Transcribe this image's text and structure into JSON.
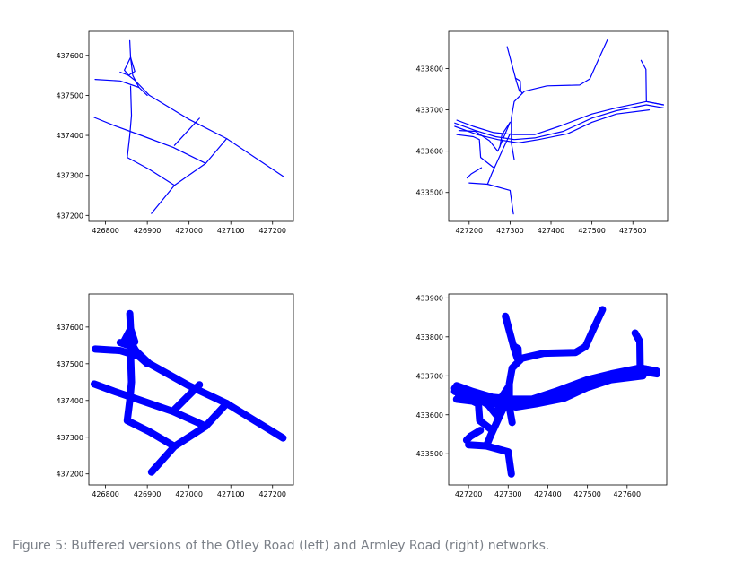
{
  "caption": "Figure 5: Buffered versions of the Otley Road (left) and Armley Road (right) networks.",
  "colors": {
    "line": "#0000ff",
    "axes": "#000000",
    "caption": "#7b8088"
  },
  "chart_data": [
    {
      "type": "line",
      "title": "",
      "network": "Otley Road",
      "style": "thin",
      "grid": false,
      "xlim": [
        426760,
        427250
      ],
      "ylim": [
        437185,
        437660
      ],
      "x_ticks": [
        426800,
        426900,
        427000,
        427100,
        427200
      ],
      "x_tick_labels": [
        "426800",
        "426900",
        "427000",
        "427100",
        "427200"
      ],
      "y_ticks": [
        437200,
        437300,
        437400,
        437500,
        437600
      ],
      "y_tick_labels": [
        "437200",
        "437300",
        "437400",
        "437500",
        "437600"
      ],
      "segments": [
        [
          [
            426858,
            437637
          ],
          [
            426860,
            437595
          ],
          [
            426865,
            437550
          ],
          [
            426880,
            437520
          ],
          [
            426900,
            437500
          ]
        ],
        [
          [
            426860,
            437595
          ],
          [
            426845,
            437563
          ],
          [
            426855,
            437550
          ],
          [
            426870,
            437560
          ],
          [
            426860,
            437595
          ]
        ],
        [
          [
            426835,
            437558
          ],
          [
            426855,
            437550
          ],
          [
            426870,
            437538
          ],
          [
            426905,
            437500
          ],
          [
            427000,
            437440
          ],
          [
            427090,
            437392
          ],
          [
            427225,
            437298
          ]
        ],
        [
          [
            426775,
            437540
          ],
          [
            426835,
            437536
          ],
          [
            426880,
            437520
          ]
        ],
        [
          [
            426860,
            437523
          ],
          [
            426862,
            437450
          ],
          [
            426858,
            437400
          ],
          [
            426852,
            437345
          ],
          [
            426905,
            437315
          ],
          [
            426965,
            437275
          ]
        ],
        [
          [
            426773,
            437445
          ],
          [
            426820,
            437425
          ],
          [
            426885,
            437400
          ],
          [
            426962,
            437370
          ],
          [
            427040,
            437330
          ]
        ],
        [
          [
            426910,
            437205
          ],
          [
            426965,
            437275
          ],
          [
            427040,
            437330
          ],
          [
            427090,
            437392
          ]
        ],
        [
          [
            426965,
            437375
          ],
          [
            427025,
            437443
          ]
        ]
      ]
    },
    {
      "type": "line",
      "title": "",
      "network": "Armley Road",
      "style": "thin",
      "grid": false,
      "xlim": [
        427150,
        427685
      ],
      "ylim": [
        433430,
        433890
      ],
      "x_ticks": [
        427200,
        427300,
        427400,
        427500,
        427600
      ],
      "x_tick_labels": [
        "427200",
        "427300",
        "427400",
        "427500",
        "427600"
      ],
      "y_ticks": [
        433500,
        433600,
        433700,
        433800
      ],
      "y_tick_labels": [
        "433500",
        "433600",
        "433700",
        "433800"
      ],
      "segments": [
        [
          [
            427293,
            433853
          ],
          [
            427303,
            433815
          ],
          [
            427315,
            433770
          ],
          [
            427323,
            433745
          ]
        ],
        [
          [
            427313,
            433777
          ],
          [
            427325,
            433770
          ],
          [
            427326,
            433745
          ],
          [
            427330,
            433740
          ]
        ],
        [
          [
            427538,
            433870
          ],
          [
            427515,
            433820
          ],
          [
            427495,
            433775
          ],
          [
            427470,
            433760
          ],
          [
            427390,
            433758
          ],
          [
            427335,
            433745
          ],
          [
            427310,
            433720
          ],
          [
            427303,
            433680
          ],
          [
            427303,
            433620
          ],
          [
            427310,
            433580
          ]
        ],
        [
          [
            427620,
            433820
          ],
          [
            427632,
            433798
          ],
          [
            427633,
            433720
          ],
          [
            427675,
            433712
          ]
        ],
        [
          [
            427170,
            433675
          ],
          [
            427210,
            433660
          ],
          [
            427260,
            433645
          ],
          [
            427310,
            433640
          ],
          [
            427360,
            433640
          ],
          [
            427420,
            433660
          ],
          [
            427500,
            433690
          ],
          [
            427560,
            433705
          ],
          [
            427633,
            433720
          ],
          [
            427675,
            433712
          ]
        ],
        [
          [
            427165,
            433668
          ],
          [
            427215,
            433650
          ],
          [
            427265,
            433635
          ],
          [
            427310,
            433628
          ],
          [
            427360,
            433632
          ],
          [
            427430,
            433648
          ],
          [
            427500,
            433680
          ],
          [
            427560,
            433698
          ],
          [
            427633,
            433712
          ],
          [
            427675,
            433705
          ]
        ],
        [
          [
            427165,
            433660
          ],
          [
            427220,
            433640
          ],
          [
            427270,
            433628
          ],
          [
            427320,
            433620
          ],
          [
            427370,
            433628
          ],
          [
            427440,
            433642
          ],
          [
            427500,
            433670
          ],
          [
            427560,
            433690
          ],
          [
            427640,
            433700
          ]
        ],
        [
          [
            427175,
            433650
          ],
          [
            427215,
            433648
          ],
          [
            427250,
            433625
          ],
          [
            427270,
            433600
          ],
          [
            427300,
            433670
          ]
        ],
        [
          [
            427300,
            433670
          ],
          [
            427280,
            433640
          ],
          [
            427275,
            433610
          ]
        ],
        [
          [
            427170,
            433640
          ],
          [
            427210,
            433635
          ],
          [
            427225,
            433628
          ],
          [
            427228,
            433585
          ],
          [
            427260,
            433560
          ]
        ],
        [
          [
            427230,
            433560
          ],
          [
            427205,
            433545
          ],
          [
            427195,
            433535
          ]
        ],
        [
          [
            427300,
            433642
          ],
          [
            427280,
            433600
          ],
          [
            427255,
            433545
          ],
          [
            427245,
            433520
          ],
          [
            427300,
            433505
          ],
          [
            427308,
            433448
          ]
        ],
        [
          [
            427200,
            433523
          ],
          [
            427245,
            433520
          ]
        ]
      ]
    },
    {
      "type": "line",
      "title": "",
      "network": "Otley Road",
      "style": "buffered",
      "grid": false,
      "xlim": [
        426760,
        427250
      ],
      "ylim": [
        437170,
        437690
      ],
      "x_ticks": [
        426800,
        426900,
        427000,
        427100,
        427200
      ],
      "x_tick_labels": [
        "426800",
        "426900",
        "427000",
        "427100",
        "427200"
      ],
      "y_ticks": [
        437200,
        437300,
        437400,
        437500,
        437600
      ],
      "y_tick_labels": [
        "437200",
        "437300",
        "437400",
        "437500",
        "437600"
      ],
      "segments": [
        [
          [
            426858,
            437637
          ],
          [
            426860,
            437595
          ],
          [
            426865,
            437550
          ],
          [
            426880,
            437520
          ],
          [
            426900,
            437500
          ]
        ],
        [
          [
            426860,
            437595
          ],
          [
            426845,
            437563
          ],
          [
            426855,
            437550
          ],
          [
            426870,
            437560
          ],
          [
            426860,
            437595
          ]
        ],
        [
          [
            426835,
            437558
          ],
          [
            426855,
            437550
          ],
          [
            426870,
            437538
          ],
          [
            426905,
            437500
          ],
          [
            427000,
            437440
          ],
          [
            427090,
            437392
          ],
          [
            427225,
            437298
          ]
        ],
        [
          [
            426775,
            437540
          ],
          [
            426835,
            437536
          ],
          [
            426880,
            437520
          ]
        ],
        [
          [
            426860,
            437523
          ],
          [
            426862,
            437450
          ],
          [
            426858,
            437400
          ],
          [
            426852,
            437345
          ],
          [
            426905,
            437315
          ],
          [
            426965,
            437275
          ]
        ],
        [
          [
            426773,
            437445
          ],
          [
            426820,
            437425
          ],
          [
            426885,
            437400
          ],
          [
            426962,
            437370
          ],
          [
            427040,
            437330
          ]
        ],
        [
          [
            426910,
            437205
          ],
          [
            426965,
            437275
          ],
          [
            427040,
            437330
          ],
          [
            427090,
            437392
          ]
        ],
        [
          [
            426965,
            437375
          ],
          [
            427025,
            437443
          ]
        ]
      ]
    },
    {
      "type": "line",
      "title": "",
      "network": "Armley Road",
      "style": "buffered",
      "grid": false,
      "xlim": [
        427150,
        427700
      ],
      "ylim": [
        433420,
        433910
      ],
      "x_ticks": [
        427200,
        427300,
        427400,
        427500,
        427600
      ],
      "x_tick_labels": [
        "427200",
        "427300",
        "427400",
        "427500",
        "427600"
      ],
      "y_ticks": [
        433500,
        433600,
        433700,
        433800,
        433900
      ],
      "y_tick_labels": [
        "433500",
        "433600",
        "433700",
        "433800",
        "433900"
      ],
      "segments": [
        [
          [
            427293,
            433853
          ],
          [
            427303,
            433815
          ],
          [
            427315,
            433770
          ],
          [
            427323,
            433745
          ]
        ],
        [
          [
            427313,
            433777
          ],
          [
            427325,
            433770
          ],
          [
            427326,
            433745
          ],
          [
            427330,
            433740
          ]
        ],
        [
          [
            427538,
            433870
          ],
          [
            427515,
            433820
          ],
          [
            427495,
            433775
          ],
          [
            427470,
            433760
          ],
          [
            427390,
            433758
          ],
          [
            427335,
            433745
          ],
          [
            427310,
            433720
          ],
          [
            427303,
            433680
          ],
          [
            427303,
            433620
          ],
          [
            427310,
            433580
          ]
        ],
        [
          [
            427620,
            433810
          ],
          [
            427632,
            433788
          ],
          [
            427633,
            433720
          ],
          [
            427675,
            433712
          ]
        ],
        [
          [
            427170,
            433675
          ],
          [
            427210,
            433660
          ],
          [
            427260,
            433645
          ],
          [
            427310,
            433640
          ],
          [
            427360,
            433640
          ],
          [
            427420,
            433660
          ],
          [
            427500,
            433690
          ],
          [
            427560,
            433705
          ],
          [
            427633,
            433720
          ],
          [
            427675,
            433712
          ]
        ],
        [
          [
            427165,
            433668
          ],
          [
            427215,
            433650
          ],
          [
            427265,
            433635
          ],
          [
            427310,
            433628
          ],
          [
            427360,
            433632
          ],
          [
            427430,
            433648
          ],
          [
            427500,
            433680
          ],
          [
            427560,
            433698
          ],
          [
            427633,
            433712
          ],
          [
            427675,
            433705
          ]
        ],
        [
          [
            427165,
            433660
          ],
          [
            427220,
            433640
          ],
          [
            427270,
            433628
          ],
          [
            427320,
            433620
          ],
          [
            427370,
            433628
          ],
          [
            427440,
            433642
          ],
          [
            427500,
            433670
          ],
          [
            427560,
            433690
          ],
          [
            427640,
            433700
          ]
        ],
        [
          [
            427175,
            433650
          ],
          [
            427215,
            433648
          ],
          [
            427250,
            433625
          ],
          [
            427270,
            433600
          ],
          [
            427300,
            433670
          ]
        ],
        [
          [
            427300,
            433670
          ],
          [
            427280,
            433640
          ],
          [
            427275,
            433610
          ]
        ],
        [
          [
            427170,
            433640
          ],
          [
            427210,
            433635
          ],
          [
            427225,
            433628
          ],
          [
            427228,
            433585
          ],
          [
            427260,
            433560
          ]
        ],
        [
          [
            427230,
            433560
          ],
          [
            427205,
            433545
          ],
          [
            427195,
            433535
          ]
        ],
        [
          [
            427300,
            433642
          ],
          [
            427280,
            433600
          ],
          [
            427255,
            433545
          ],
          [
            427245,
            433520
          ],
          [
            427300,
            433505
          ],
          [
            427308,
            433448
          ]
        ],
        [
          [
            427200,
            433523
          ],
          [
            427245,
            433520
          ]
        ]
      ]
    }
  ]
}
